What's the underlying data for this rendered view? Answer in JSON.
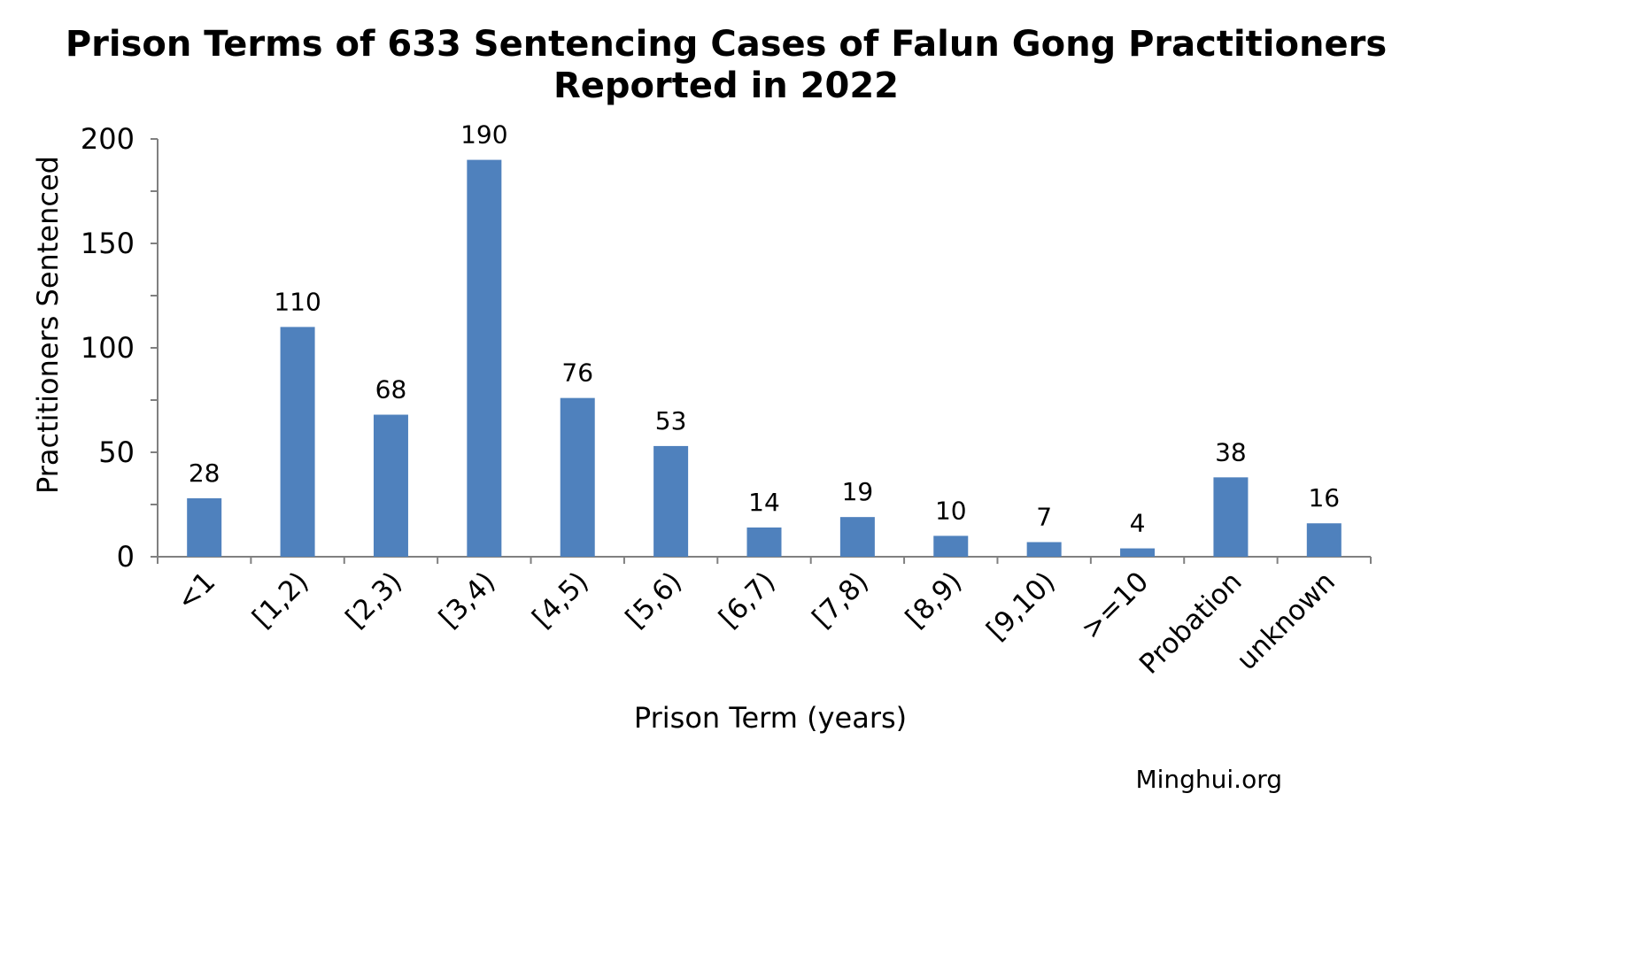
{
  "chart_data": {
    "type": "bar",
    "title_line1": "Prison Terms of 633 Sentencing Cases of Falun Gong Practitioners",
    "title_line2": "Reported in 2022",
    "xlabel": "Prison Term (years)",
    "ylabel": "Practitioners Sentenced",
    "categories": [
      "<1",
      "[1,2)",
      "[2,3)",
      "[3,4)",
      "[4,5)",
      "[5,6)",
      "[6,7)",
      "[7,8)",
      "[8,9)",
      "[9,10)",
      ">=10",
      "Probation",
      "unknown"
    ],
    "values": [
      28,
      110,
      68,
      190,
      76,
      53,
      14,
      19,
      10,
      7,
      4,
      38,
      16
    ],
    "ylim": [
      0,
      200
    ],
    "yticks": [
      0,
      50,
      100,
      150,
      200
    ],
    "grid": false,
    "data_labels": true,
    "bar_color": "#4f81bd"
  },
  "source": "Minghui.org"
}
